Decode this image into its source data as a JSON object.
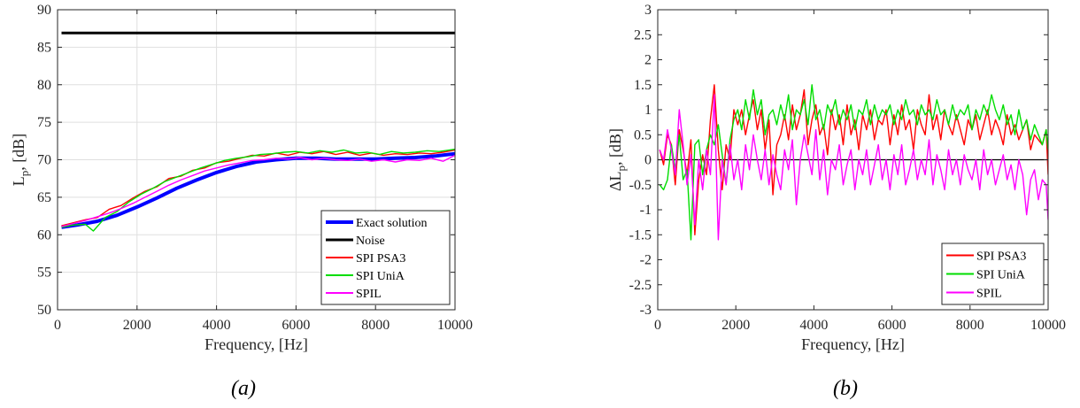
{
  "chart_data": [
    {
      "type": "line",
      "caption": "(a)",
      "xlabel": "Frequency, [Hz]",
      "ylabel_main": "L",
      "ylabel_sub": "p",
      "ylabel_rest": ", [dB]",
      "xlim": [
        0,
        10000
      ],
      "ylim": [
        50,
        90
      ],
      "xticks": [
        0,
        2000,
        4000,
        6000,
        8000,
        10000
      ],
      "yticks": [
        50,
        55,
        60,
        65,
        70,
        75,
        80,
        85,
        90
      ],
      "grid": true,
      "legend_position": "bottom-right",
      "series": [
        {
          "name": "Exact solution",
          "color": "#0000ff",
          "width": 4,
          "x": [
            100,
            500,
            1000,
            1500,
            2000,
            2500,
            3000,
            3500,
            4000,
            4500,
            5000,
            5500,
            6000,
            6500,
            7000,
            7500,
            8000,
            8500,
            9000,
            9500,
            10000
          ],
          "y": [
            61.0,
            61.3,
            61.8,
            62.6,
            63.7,
            64.9,
            66.2,
            67.3,
            68.3,
            69.1,
            69.7,
            70.0,
            70.2,
            70.2,
            70.1,
            70.1,
            70.1,
            70.2,
            70.3,
            70.5,
            70.8
          ]
        },
        {
          "name": "Noise",
          "color": "#000000",
          "width": 3,
          "x": [
            100,
            10000
          ],
          "y": [
            86.9,
            86.9
          ]
        },
        {
          "name": "SPI PSA3",
          "color": "#ff0000",
          "width": 1.4,
          "x": [
            100,
            400,
            700,
            1000,
            1300,
            1600,
            1900,
            2200,
            2500,
            2800,
            3100,
            3400,
            3700,
            4000,
            4300,
            4600,
            4900,
            5200,
            5500,
            5800,
            6100,
            6400,
            6700,
            7000,
            7300,
            7600,
            7900,
            8200,
            8500,
            8800,
            9100,
            9400,
            9700,
            10000
          ],
          "y": [
            61.2,
            61.6,
            62.0,
            62.3,
            63.4,
            63.9,
            64.9,
            65.8,
            66.4,
            67.5,
            67.8,
            68.6,
            68.9,
            69.6,
            69.8,
            70.2,
            70.6,
            70.5,
            70.9,
            70.6,
            71.0,
            70.8,
            71.1,
            70.7,
            71.0,
            70.6,
            70.9,
            70.6,
            70.8,
            70.7,
            70.9,
            70.8,
            71.0,
            71.3
          ]
        },
        {
          "name": "SPI UniA",
          "color": "#00dd00",
          "width": 1.4,
          "x": [
            100,
            400,
            700,
            900,
            1200,
            1500,
            1800,
            2100,
            2400,
            2700,
            3000,
            3300,
            3600,
            3900,
            4200,
            4500,
            4800,
            5100,
            5400,
            5700,
            6000,
            6300,
            6600,
            6900,
            7200,
            7500,
            7800,
            8100,
            8400,
            8700,
            9000,
            9300,
            9600,
            10000
          ],
          "y": [
            61.0,
            61.3,
            61.4,
            60.5,
            62.3,
            63.1,
            64.4,
            65.4,
            66.2,
            67.1,
            67.7,
            68.3,
            68.9,
            69.4,
            69.9,
            70.2,
            70.4,
            70.7,
            70.8,
            71.0,
            71.1,
            70.9,
            71.2,
            71.0,
            71.3,
            70.9,
            71.0,
            70.7,
            71.1,
            70.9,
            71.0,
            71.2,
            71.1,
            71.4
          ]
        },
        {
          "name": "SPIL",
          "color": "#ff00ff",
          "width": 1.4,
          "x": [
            100,
            400,
            700,
            1000,
            1300,
            1600,
            1900,
            2200,
            2500,
            2800,
            3100,
            3400,
            3700,
            4000,
            4300,
            4600,
            4900,
            5200,
            5500,
            5800,
            6100,
            6400,
            6700,
            7000,
            7300,
            7600,
            7900,
            8200,
            8500,
            8800,
            9100,
            9400,
            9700,
            10000
          ],
          "y": [
            61.1,
            61.5,
            61.9,
            62.4,
            62.9,
            63.5,
            64.2,
            65.0,
            65.8,
            66.6,
            67.3,
            67.9,
            68.5,
            68.9,
            69.3,
            69.6,
            69.9,
            70.0,
            70.2,
            70.1,
            70.3,
            70.0,
            70.2,
            70.0,
            69.9,
            70.1,
            69.8,
            70.0,
            69.7,
            70.0,
            69.9,
            70.2,
            69.8,
            70.6
          ]
        }
      ]
    },
    {
      "type": "line",
      "caption": "(b)",
      "xlabel": "Frequency, [Hz]",
      "ylabel_main": "ΔL",
      "ylabel_sub": "p",
      "ylabel_rest": ", [dB]",
      "xlim": [
        0,
        10000
      ],
      "ylim": [
        -3,
        3
      ],
      "xticks": [
        0,
        2000,
        4000,
        6000,
        8000,
        10000
      ],
      "yticks": [
        -3,
        -2.5,
        -2,
        -1.5,
        -1,
        -0.5,
        0,
        0.5,
        1,
        1.5,
        2,
        2.5,
        3
      ],
      "grid": false,
      "zero_line": true,
      "legend_position": "bottom-right",
      "series": [
        {
          "name": "SPI PSA3",
          "color": "#ff0000",
          "width": 1.4,
          "x": [
            50,
            150,
            250,
            350,
            450,
            550,
            650,
            750,
            850,
            950,
            1050,
            1150,
            1250,
            1350,
            1450,
            1550,
            1650,
            1750,
            1850,
            1950,
            2050,
            2150,
            2250,
            2350,
            2450,
            2550,
            2650,
            2750,
            2850,
            2950,
            3050,
            3150,
            3250,
            3350,
            3450,
            3550,
            3650,
            3750,
            3850,
            3950,
            4050,
            4150,
            4250,
            4350,
            4450,
            4550,
            4650,
            4750,
            4850,
            4950,
            5050,
            5150,
            5250,
            5350,
            5450,
            5550,
            5650,
            5750,
            5850,
            5950,
            6050,
            6150,
            6250,
            6350,
            6450,
            6550,
            6650,
            6750,
            6850,
            6950,
            7050,
            7150,
            7250,
            7350,
            7450,
            7550,
            7650,
            7750,
            7850,
            7950,
            8050,
            8150,
            8250,
            8350,
            8450,
            8550,
            8650,
            8750,
            8850,
            8950,
            9050,
            9150,
            9250,
            9350,
            9450,
            9550,
            9650,
            9750,
            9850,
            9950,
            10000
          ],
          "y": [
            0.2,
            -0.1,
            0.5,
            0.3,
            -0.5,
            0.6,
            0.2,
            -0.3,
            0.4,
            -1.5,
            -0.4,
            0.1,
            -0.3,
            0.8,
            1.5,
            0.2,
            -0.6,
            0.3,
            0.0,
            1.0,
            0.7,
            1.0,
            0.5,
            0.9,
            1.2,
            0.6,
            1.0,
            0.2,
            0.8,
            -0.7,
            0.3,
            0.5,
            0.9,
            0.4,
            1.1,
            0.6,
            0.9,
            1.4,
            0.3,
            0.8,
            1.1,
            0.5,
            0.7,
            0.1,
            1.0,
            0.6,
            0.9,
            0.3,
            1.1,
            0.5,
            0.8,
            0.2,
            0.9,
            0.6,
            1.0,
            0.4,
            0.8,
            0.7,
            1.0,
            0.3,
            0.9,
            0.5,
            1.1,
            0.6,
            0.8,
            0.2,
            1.0,
            0.7,
            0.5,
            1.3,
            0.6,
            0.9,
            0.4,
            1.0,
            0.7,
            0.5,
            0.9,
            0.6,
            0.3,
            0.8,
            0.6,
            0.9,
            0.4,
            0.7,
            1.0,
            0.5,
            0.8,
            0.6,
            0.3,
            0.9,
            0.5,
            0.7,
            0.4,
            0.6,
            0.8,
            0.2,
            0.5,
            0.4,
            0.3,
            0.6,
            -0.3
          ]
        },
        {
          "name": "SPI UniA",
          "color": "#00dd00",
          "width": 1.4,
          "x": [
            50,
            150,
            250,
            350,
            450,
            550,
            650,
            750,
            850,
            950,
            1050,
            1150,
            1250,
            1350,
            1450,
            1550,
            1650,
            1750,
            1850,
            1950,
            2050,
            2150,
            2250,
            2350,
            2450,
            2550,
            2650,
            2750,
            2850,
            2950,
            3050,
            3150,
            3250,
            3350,
            3450,
            3550,
            3650,
            3750,
            3850,
            3950,
            4050,
            4150,
            4250,
            4350,
            4450,
            4550,
            4650,
            4750,
            4850,
            4950,
            5050,
            5150,
            5250,
            5350,
            5450,
            5550,
            5650,
            5750,
            5850,
            5950,
            6050,
            6150,
            6250,
            6350,
            6450,
            6550,
            6650,
            6750,
            6850,
            6950,
            7050,
            7150,
            7250,
            7350,
            7450,
            7550,
            7650,
            7750,
            7850,
            7950,
            8050,
            8150,
            8250,
            8350,
            8450,
            8550,
            8650,
            8750,
            8850,
            8950,
            9050,
            9150,
            9250,
            9350,
            9450,
            9550,
            9650,
            9750,
            9850,
            9950,
            10000
          ],
          "y": [
            -0.5,
            -0.6,
            -0.4,
            0.3,
            -0.2,
            0.5,
            -0.4,
            -0.2,
            -1.6,
            0.3,
            0.4,
            -0.3,
            0.2,
            0.5,
            0.3,
            0.7,
            0.1,
            -0.5,
            0.4,
            0.8,
            1.0,
            0.6,
            1.2,
            0.8,
            1.4,
            0.9,
            1.2,
            0.5,
            0.9,
            1.0,
            0.7,
            1.1,
            0.8,
            1.3,
            0.6,
            1.0,
            0.9,
            1.2,
            0.7,
            1.5,
            0.8,
            1.0,
            0.6,
            1.1,
            0.9,
            1.2,
            0.7,
            1.0,
            0.8,
            1.1,
            0.6,
            1.0,
            0.9,
            1.2,
            0.7,
            1.1,
            0.8,
            1.0,
            0.9,
            1.1,
            0.7,
            1.0,
            0.8,
            1.2,
            0.9,
            1.0,
            0.7,
            1.1,
            0.9,
            1.0,
            0.8,
            1.2,
            0.9,
            1.0,
            0.7,
            1.1,
            0.8,
            1.0,
            0.9,
            1.1,
            0.6,
            1.0,
            0.8,
            1.1,
            0.9,
            1.3,
            1.0,
            0.8,
            1.1,
            0.7,
            0.9,
            0.5,
            1.0,
            0.6,
            0.8,
            0.4,
            0.7,
            0.5,
            0.3,
            0.6,
            0.2
          ]
        },
        {
          "name": "SPIL",
          "color": "#ff00ff",
          "width": 1.4,
          "x": [
            50,
            150,
            250,
            350,
            450,
            550,
            650,
            750,
            850,
            950,
            1050,
            1150,
            1250,
            1350,
            1450,
            1550,
            1650,
            1750,
            1850,
            1950,
            2050,
            2150,
            2250,
            2350,
            2450,
            2550,
            2650,
            2750,
            2850,
            2950,
            3050,
            3150,
            3250,
            3350,
            3450,
            3550,
            3650,
            3750,
            3850,
            3950,
            4050,
            4150,
            4250,
            4350,
            4450,
            4550,
            4650,
            4750,
            4850,
            4950,
            5050,
            5150,
            5250,
            5350,
            5450,
            5550,
            5650,
            5750,
            5850,
            5950,
            6050,
            6150,
            6250,
            6350,
            6450,
            6550,
            6650,
            6750,
            6850,
            6950,
            7050,
            7150,
            7250,
            7350,
            7450,
            7550,
            7650,
            7750,
            7850,
            7950,
            8050,
            8150,
            8250,
            8350,
            8450,
            8550,
            8650,
            8750,
            8850,
            8950,
            9050,
            9150,
            9250,
            9350,
            9450,
            9550,
            9650,
            9750,
            9850,
            9950,
            10000
          ],
          "y": [
            0.2,
            0.0,
            0.6,
            0.2,
            -0.3,
            1.0,
            0.3,
            -0.5,
            0.1,
            -1.3,
            0.0,
            -0.6,
            0.2,
            -0.3,
            1.3,
            -1.6,
            0.0,
            -0.5,
            0.3,
            -0.4,
            0.0,
            -0.6,
            0.3,
            -0.2,
            0.5,
            0.0,
            -0.4,
            0.2,
            -0.5,
            0.1,
            -0.3,
            -0.6,
            0.2,
            -0.2,
            0.4,
            -0.9,
            0.0,
            0.5,
            0.1,
            -0.3,
            0.6,
            -0.4,
            0.2,
            -0.7,
            0.0,
            -0.2,
            0.3,
            -0.5,
            -0.1,
            0.2,
            -0.6,
            0.0,
            -0.3,
            0.2,
            -0.5,
            -0.1,
            0.3,
            -0.4,
            0.0,
            -0.6,
            0.1,
            -0.3,
            0.3,
            -0.5,
            -0.2,
            0.2,
            -0.4,
            0.0,
            -0.3,
            0.4,
            -0.5,
            0.1,
            -0.2,
            -0.6,
            0.2,
            -0.3,
            0.0,
            -0.5,
            0.1,
            -0.2,
            -0.4,
            0.0,
            -0.6,
            0.2,
            -0.3,
            0.0,
            -0.5,
            -0.2,
            0.1,
            -0.4,
            -0.1,
            -0.6,
            0.0,
            -0.3,
            -1.1,
            -0.4,
            -0.2,
            -0.8,
            -0.4,
            -0.5,
            -1.2
          ]
        }
      ]
    }
  ]
}
